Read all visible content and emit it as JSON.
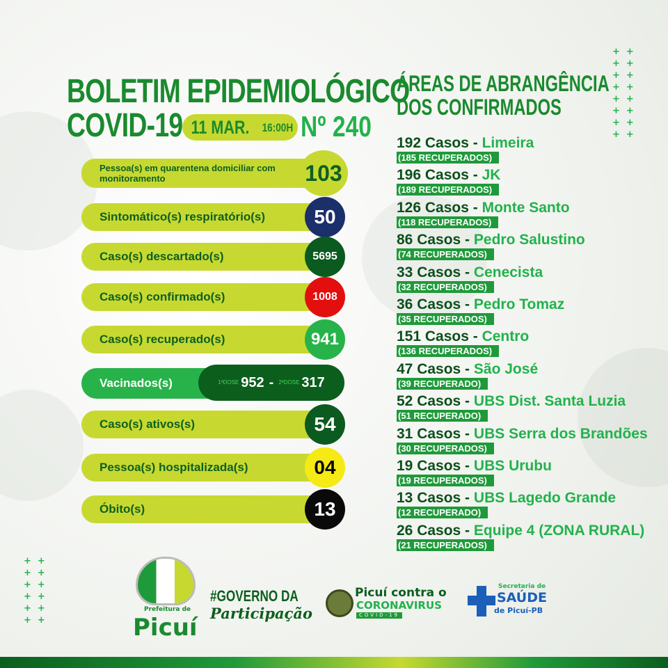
{
  "header": {
    "title_line1": "BOLETIM EPIDEMIOLÓGICO",
    "title_line2": "COVID-19",
    "date": "11 MAR.",
    "time": "16:00H",
    "number": "Nº 240"
  },
  "stats": [
    {
      "label": "Pessoa(s) em quarentena domiciliar com monitoramento",
      "value": "103",
      "color": "#c7d930"
    },
    {
      "label": "Sintomático(s) respiratório(s)",
      "value": "50",
      "color": "#1b2f6b"
    },
    {
      "label": "Caso(s) descartado(s)",
      "value": "5695",
      "color": "#0b5a1f"
    },
    {
      "label": "Caso(s) confirmado(s)",
      "value": "1008",
      "color": "#e30e0e"
    },
    {
      "label": "Caso(s) recuperado(s)",
      "value": "941",
      "color": "#27b34a"
    },
    {
      "label": "Caso(s) ativos(s)",
      "value": "54",
      "color": "#0b5a1f"
    },
    {
      "label": "Pessoa(s) hospitalizada(s)",
      "value": "04",
      "color": "#f5ea14"
    },
    {
      "label": "Óbito(s)",
      "value": "13",
      "color": "#0a0a0a"
    }
  ],
  "vaccinated": {
    "label": "Vacinados(s)",
    "dose1_label": "1ªDOSE",
    "dose1": "952",
    "sep": "-",
    "dose2_label": "2ªDOSE",
    "dose2": "317"
  },
  "areas": {
    "title_line1": "ÁREAS DE ABRANGÊNCIA",
    "title_line2": "DOS CONFIRMADOS",
    "items": [
      {
        "cases": "192 Casos -",
        "place": "Limeira",
        "recovered": "(185 RECUPERADOS)"
      },
      {
        "cases": "196 Casos -",
        "place": "JK",
        "recovered": "(189 RECUPERADOS)"
      },
      {
        "cases": "126 Casos -",
        "place": "Monte Santo",
        "recovered": "(118 RECUPERADOS)"
      },
      {
        "cases": "86 Casos -",
        "place": "Pedro Salustino",
        "recovered": "(74 RECUPERADOS)"
      },
      {
        "cases": "33 Casos -",
        "place": "Cenecista",
        "recovered": "(32 RECUPERADOS)"
      },
      {
        "cases": "36 Casos -",
        "place": "Pedro Tomaz",
        "recovered": "(35 RECUPERADOS)"
      },
      {
        "cases": "151 Casos -",
        "place": "Centro",
        "recovered": "(136 RECUPERADOS)"
      },
      {
        "cases": "47 Casos -",
        "place": "São José",
        "recovered": "(39 RECUPERADO)"
      },
      {
        "cases": "52 Casos -",
        "place": "UBS Dist. Santa Luzia",
        "recovered": "(51 RECUPERADO)"
      },
      {
        "cases": "31 Casos -",
        "place": "UBS Serra dos Brandões",
        "recovered": "(30 RECUPERADOS)"
      },
      {
        "cases": "19 Casos -",
        "place": "UBS Urubu",
        "recovered": "(19 RECUPERADOS)"
      },
      {
        "cases": "13 Casos -",
        "place": "UBS Lagedo Grande",
        "recovered": "(12 RECUPERADO)"
      },
      {
        "cases": "26 Casos -",
        "place": "Equipe 4 (ZONA RURAL)",
        "recovered": "(21 RECUPERADOS)"
      }
    ]
  },
  "footer": {
    "picui_logo": {
      "small": "Prefeitura de",
      "big": "Picuí"
    },
    "governo": {
      "line1": "#GOVERNO DA",
      "line2": "Participação"
    },
    "campaign": {
      "line1": "Picuí contra o",
      "line2": "CORONAVIRUS",
      "line3": "COVID-19"
    },
    "secretaria": {
      "line1": "Secretaria de",
      "line2": "SAÚDE",
      "line3": "de Picuí-PB"
    }
  },
  "colors": {
    "dark_green": "#0c5e1d",
    "green": "#22b24c",
    "lime": "#c7d930"
  }
}
